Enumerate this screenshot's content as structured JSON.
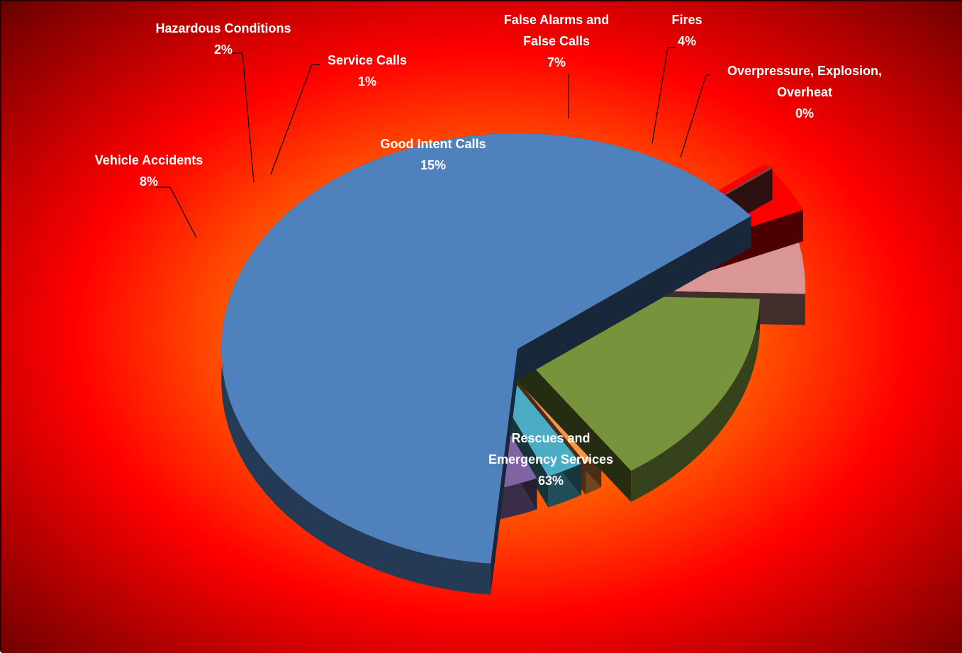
{
  "chart_data": {
    "type": "pie",
    "style": "exploded 3D pie",
    "title": "",
    "legend": "none",
    "slices": [
      {
        "label": "Rescues and Emergency Services",
        "value": 63,
        "display": "63%",
        "color": "#4f81bd"
      },
      {
        "label": "Vehicle Accidents",
        "value": 8,
        "display": "8%",
        "color": "#8064a2"
      },
      {
        "label": "Hazardous Conditions",
        "value": 2,
        "display": "2%",
        "color": "#4bacc6"
      },
      {
        "label": "Service Calls",
        "value": 1,
        "display": "1%",
        "color": "#f79646"
      },
      {
        "label": "Good Intent Calls",
        "value": 15,
        "display": "15%",
        "color": "#77933c"
      },
      {
        "label": "False Alarms and False Calls",
        "value": 7,
        "display": "7%",
        "color": "#d99694"
      },
      {
        "label": "Fires",
        "value": 4,
        "display": "4%",
        "color": "#ff0000"
      },
      {
        "label": "Overpressure, Explosion, Overheat",
        "value": 0,
        "display": "0%",
        "color": "#953735"
      }
    ],
    "background": {
      "center": "#ffe600",
      "middle": "#ff8c00",
      "outer": "#ff0000",
      "corner": "#5a0000"
    }
  }
}
